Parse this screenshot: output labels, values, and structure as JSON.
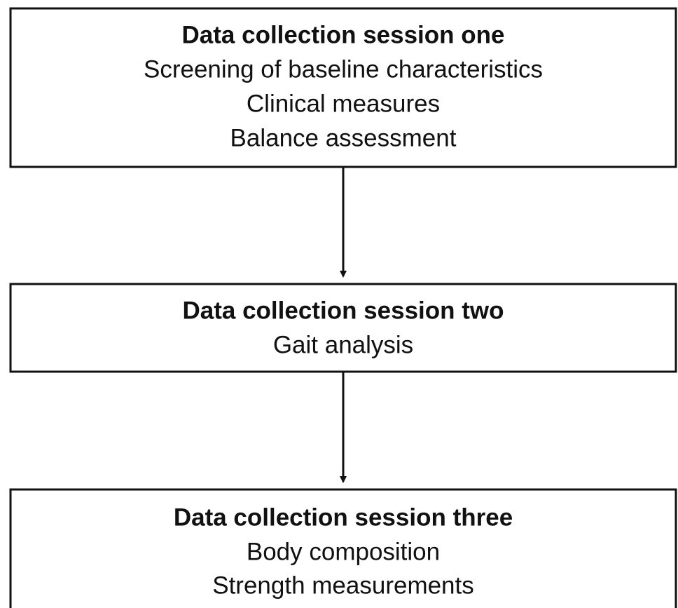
{
  "nodes": [
    {
      "title": "Data collection session one",
      "lines": [
        "Screening of baseline characteristics",
        "Clinical measures",
        "Balance assessment"
      ]
    },
    {
      "title": "Data collection session two",
      "lines": [
        "Gait analysis"
      ]
    },
    {
      "title": "Data collection session three",
      "lines": [
        "Body composition",
        "Strength measurements"
      ]
    }
  ]
}
